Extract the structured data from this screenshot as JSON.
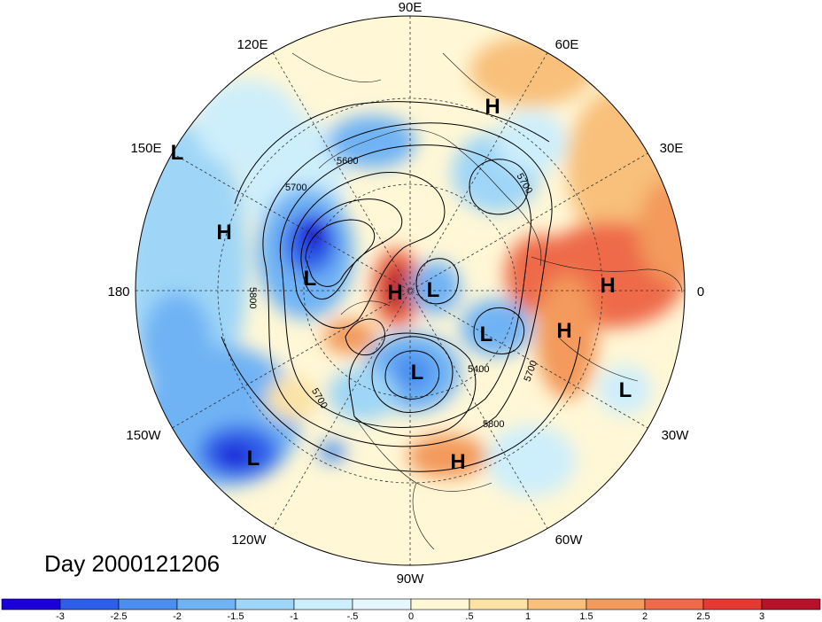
{
  "title": "Day 2000121206",
  "longitude_labels": [
    "90E",
    "120E",
    "60E",
    "150E",
    "30E",
    "180",
    "0",
    "150W",
    "30W",
    "120W",
    "60W",
    "90W"
  ],
  "pressure_centers": [
    {
      "type": "H",
      "name": "h-siberia"
    },
    {
      "type": "L",
      "name": "l-150e"
    },
    {
      "type": "H",
      "name": "h-pacific"
    },
    {
      "type": "L",
      "name": "l-bering"
    },
    {
      "type": "H",
      "name": "h-arctic"
    },
    {
      "type": "L",
      "name": "l-arctic"
    },
    {
      "type": "L",
      "name": "l-greenland"
    },
    {
      "type": "L",
      "name": "l-hudson"
    },
    {
      "type": "H",
      "name": "h-europe"
    },
    {
      "type": "H",
      "name": "h-atlantic"
    },
    {
      "type": "L",
      "name": "l-atlantic"
    },
    {
      "type": "L",
      "name": "l-eastern-pacific"
    },
    {
      "type": "H",
      "name": "h-caribbean"
    }
  ],
  "contour_labels": [
    "5600",
    "5700",
    "5800",
    "5400",
    "5700",
    "5800",
    "5700",
    "5700"
  ],
  "colorbar": {
    "ticks": [
      "-3",
      "-2.5",
      "-2",
      "-1.5",
      "-1",
      "-.5",
      "0",
      ".5",
      "1",
      "1.5",
      "2",
      "2.5",
      "3"
    ],
    "colors": [
      "#1a00d6",
      "#2e5fe8",
      "#4a8ff0",
      "#6fb3f4",
      "#9fd6f7",
      "#cdeefb",
      "#e6f7fc",
      "#fff7d6",
      "#fbe3a6",
      "#f8c07a",
      "#f39a5c",
      "#ee6a48",
      "#e53a34",
      "#b8122a"
    ]
  }
}
